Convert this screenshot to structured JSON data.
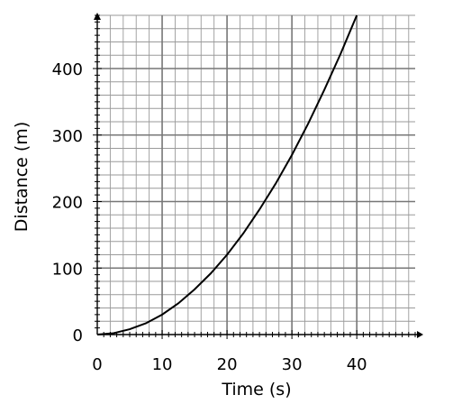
{
  "chart_data": {
    "type": "line",
    "xlabel": "Time (s)",
    "ylabel": "Distance (m)",
    "xlim": [
      0,
      49
    ],
    "ylim": [
      0,
      480
    ],
    "x_ticks": [
      0,
      10,
      20,
      30,
      40
    ],
    "y_ticks": [
      0,
      100,
      200,
      300,
      400
    ],
    "x_tick_labels": [
      "0",
      "10",
      "20",
      "30",
      "40"
    ],
    "y_tick_labels": [
      "0",
      "100",
      "200",
      "300",
      "400"
    ],
    "grid": true,
    "series": [
      {
        "color": "#000000",
        "x": [
          0,
          2.5,
          5,
          7.5,
          10,
          12.5,
          15,
          17.5,
          20,
          22.5,
          25,
          27.5,
          30,
          32.5,
          35,
          37.5,
          40
        ],
        "y": [
          0,
          2,
          8,
          17,
          30,
          47,
          68,
          92,
          120,
          152,
          188,
          227,
          270,
          317,
          368,
          422,
          480
        ]
      }
    ]
  }
}
